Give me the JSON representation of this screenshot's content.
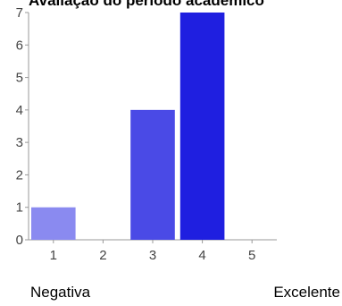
{
  "chart_data": {
    "type": "bar",
    "title": "Avaliação do período acadêmico",
    "categories": [
      "1",
      "2",
      "3",
      "4",
      "5"
    ],
    "values": [
      1,
      0,
      4,
      7,
      0
    ],
    "ylim": [
      0,
      7
    ],
    "yticks": [
      0,
      1,
      2,
      3,
      4,
      5,
      6,
      7
    ],
    "bar_colors": [
      "#8a8af0",
      "#6b6bea",
      "#4a4ae6",
      "#1f1fe0",
      "#0000d0"
    ],
    "grid": false,
    "legend": "none"
  },
  "scale": {
    "low_label": "Negativa",
    "high_label": "Excelente"
  }
}
